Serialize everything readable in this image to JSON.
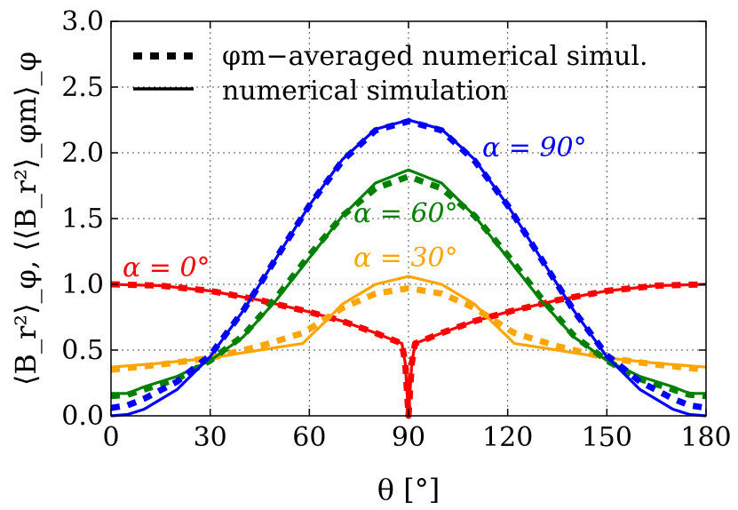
{
  "chart_data": {
    "type": "line",
    "title": "",
    "xlabel": "θ [°]",
    "ylabel": "⟨B_r²⟩_φ, ⟨⟨B_r²⟩_φm⟩_φ",
    "xlim": [
      0,
      180
    ],
    "ylim": [
      0,
      3
    ],
    "x_ticks": [
      "0",
      "30",
      "60",
      "90",
      "120",
      "150",
      "180"
    ],
    "y_ticks": [
      "0.0",
      "0.5",
      "1.0",
      "1.5",
      "2.0",
      "2.5",
      "3.0"
    ],
    "grid": true,
    "legend_position": "top-left",
    "legend": [
      {
        "label": "φm−averaged numerical simul.",
        "style": "dotted"
      },
      {
        "label": "numerical simulation",
        "style": "solid"
      }
    ],
    "annotations": [
      {
        "text": "α = 90°",
        "color": "#0000ff"
      },
      {
        "text": "α = 60°",
        "color": "#008000"
      },
      {
        "text": "α = 30°",
        "color": "#ffa500"
      },
      {
        "text": "α = 0°",
        "color": "#ff0000"
      }
    ],
    "series": [
      {
        "name": "α = 0°",
        "color": "#ff0000",
        "x": [
          0,
          15,
          30,
          45,
          60,
          70,
          80,
          85,
          88,
          89,
          90,
          91,
          92,
          95,
          100,
          110,
          120,
          135,
          150,
          165,
          180
        ],
        "simulation": [
          1.0,
          0.99,
          0.95,
          0.88,
          0.79,
          0.72,
          0.63,
          0.58,
          0.55,
          0.4,
          0.0,
          0.4,
          0.55,
          0.58,
          0.63,
          0.72,
          0.79,
          0.88,
          0.95,
          0.99,
          1.0
        ],
        "averaged": [
          1.0,
          0.99,
          0.95,
          0.88,
          0.79,
          0.72,
          0.63,
          0.58,
          0.55,
          0.4,
          0.0,
          0.4,
          0.55,
          0.58,
          0.63,
          0.72,
          0.79,
          0.88,
          0.95,
          0.99,
          1.0
        ]
      },
      {
        "name": "α = 30°",
        "color": "#ffa500",
        "x": [
          0,
          15,
          30,
          45,
          58,
          60,
          65,
          70,
          80,
          90,
          100,
          110,
          115,
          120,
          122,
          135,
          150,
          165,
          180
        ],
        "simulation": [
          0.37,
          0.4,
          0.44,
          0.5,
          0.55,
          0.6,
          0.72,
          0.85,
          1.0,
          1.06,
          1.0,
          0.85,
          0.72,
          0.6,
          0.55,
          0.5,
          0.44,
          0.4,
          0.37
        ],
        "averaged": [
          0.35,
          0.39,
          0.44,
          0.53,
          0.63,
          0.66,
          0.74,
          0.82,
          0.93,
          0.97,
          0.93,
          0.82,
          0.74,
          0.66,
          0.63,
          0.53,
          0.44,
          0.39,
          0.35
        ]
      },
      {
        "name": "α = 60°",
        "color": "#008000",
        "x": [
          0,
          5,
          10,
          20,
          30,
          40,
          50,
          60,
          70,
          80,
          90,
          100,
          110,
          120,
          130,
          140,
          150,
          160,
          170,
          175,
          180
        ],
        "simulation": [
          0.17,
          0.17,
          0.22,
          0.3,
          0.42,
          0.6,
          0.88,
          1.2,
          1.52,
          1.77,
          1.87,
          1.77,
          1.52,
          1.2,
          0.88,
          0.6,
          0.42,
          0.3,
          0.22,
          0.17,
          0.17
        ],
        "averaged": [
          0.15,
          0.16,
          0.2,
          0.28,
          0.42,
          0.61,
          0.9,
          1.22,
          1.52,
          1.73,
          1.82,
          1.73,
          1.52,
          1.22,
          0.9,
          0.61,
          0.42,
          0.28,
          0.2,
          0.16,
          0.15
        ]
      },
      {
        "name": "α = 90°",
        "color": "#0000ff",
        "x": [
          0,
          5,
          10,
          20,
          30,
          40,
          50,
          60,
          70,
          80,
          90,
          100,
          110,
          120,
          130,
          140,
          150,
          160,
          170,
          175,
          180
        ],
        "simulation": [
          0.0,
          0.01,
          0.05,
          0.2,
          0.45,
          0.8,
          1.2,
          1.6,
          1.95,
          2.18,
          2.25,
          2.18,
          1.95,
          1.6,
          1.2,
          0.8,
          0.45,
          0.2,
          0.05,
          0.01,
          0.0
        ],
        "averaged": [
          0.06,
          0.08,
          0.13,
          0.26,
          0.46,
          0.8,
          1.2,
          1.6,
          1.94,
          2.17,
          2.24,
          2.17,
          1.94,
          1.6,
          1.2,
          0.8,
          0.46,
          0.26,
          0.13,
          0.08,
          0.06
        ]
      }
    ]
  }
}
